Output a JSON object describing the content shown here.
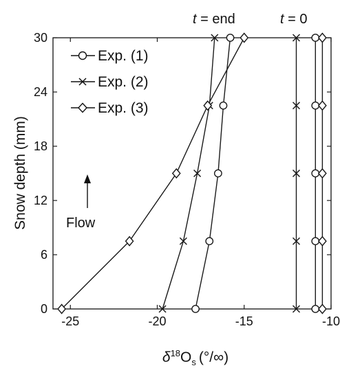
{
  "chart_data": {
    "type": "line",
    "title": "",
    "xlabel": "δ18Os (°/∞)",
    "xlabel_parts": {
      "delta": "δ",
      "sup": "18",
      "base": "O",
      "sub": "s",
      "unit": "(°/∞)"
    },
    "ylabel": "Snow depth (mm)",
    "xlim": [
      -26,
      -10
    ],
    "ylim": [
      0,
      30
    ],
    "xticks": [
      -25,
      -20,
      -15,
      -10
    ],
    "xtick_labels": [
      "-25",
      "-20",
      "-15",
      "-10"
    ],
    "yticks": [
      0,
      6,
      12,
      18,
      24,
      30
    ],
    "ytick_labels": [
      "0",
      "6",
      "12",
      "18",
      "24",
      "30"
    ],
    "grid": false,
    "legend_position": "top-left",
    "series": [
      {
        "name": "Exp. (1)",
        "marker": "circle",
        "group": "end",
        "x": [
          -17.8,
          -17.0,
          -16.5,
          -16.2,
          -15.8
        ],
        "y": [
          0,
          7.5,
          15,
          22.5,
          30
        ]
      },
      {
        "name": "Exp. (2)",
        "marker": "x",
        "group": "end",
        "x": [
          -19.7,
          -18.5,
          -17.7,
          -17.0,
          -16.7
        ],
        "y": [
          0,
          7.5,
          15,
          22.5,
          30
        ]
      },
      {
        "name": "Exp. (3)",
        "marker": "diamond",
        "group": "end",
        "x": [
          -25.5,
          -21.6,
          -18.9,
          -17.1,
          -15.0
        ],
        "y": [
          0,
          7.5,
          15,
          22.5,
          30
        ]
      },
      {
        "name": "Exp. (1)",
        "marker": "circle",
        "group": "start",
        "x": [
          -10.9,
          -10.9,
          -10.9,
          -10.9,
          -10.9
        ],
        "y": [
          0,
          7.5,
          15,
          22.5,
          30
        ]
      },
      {
        "name": "Exp. (2)",
        "marker": "x",
        "group": "start",
        "x": [
          -12.0,
          -12.0,
          -12.0,
          -12.0,
          -12.0
        ],
        "y": [
          0,
          7.5,
          15,
          22.5,
          30
        ]
      },
      {
        "name": "Exp. (3)",
        "marker": "diamond",
        "group": "start",
        "x": [
          -10.5,
          -10.5,
          -10.5,
          -10.5,
          -10.5
        ],
        "y": [
          0,
          7.5,
          15,
          22.5,
          30
        ]
      }
    ],
    "annotations": {
      "t_end_italic": "t",
      "t_end_rest": " = end",
      "t_zero_italic": "t",
      "t_zero_rest": " = 0",
      "flow": "Flow"
    },
    "colors": {
      "line": "#1a1a1a",
      "text": "#111111",
      "background": "#ffffff"
    }
  }
}
